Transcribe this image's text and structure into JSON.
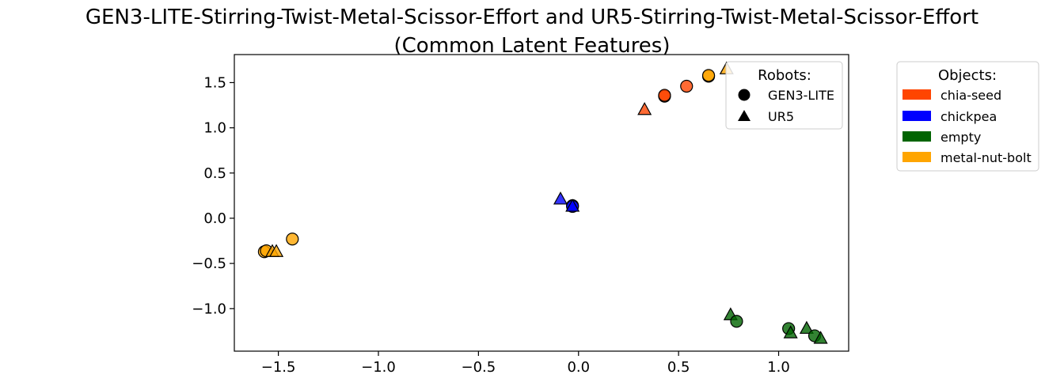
{
  "chart_data": {
    "type": "scatter",
    "title": "GEN3-LITE-Stirring-Twist-Metal-Scissor-Effort and UR5-Stirring-Twist-Metal-Scissor-Effort",
    "subtitle": "(Common Latent Features)",
    "xlabel": "",
    "ylabel": "",
    "xlim": [
      -1.72,
      1.35
    ],
    "ylim": [
      -1.47,
      1.81
    ],
    "grid": false,
    "x_ticks": [
      -1.5,
      -1.0,
      -0.5,
      0.0,
      0.5,
      1.0
    ],
    "x_tick_labels": [
      "−1.5",
      "−1.0",
      "−0.5",
      "0.0",
      "0.5",
      "1.0"
    ],
    "y_ticks": [
      -1.0,
      -0.5,
      0.0,
      0.5,
      1.0,
      1.5
    ],
    "y_tick_labels": [
      "−1.0",
      "−0.5",
      "0.0",
      "0.5",
      "1.0",
      "1.5"
    ],
    "robots_legend": {
      "title": "Robots:",
      "placement": "upper-right inside axes",
      "items": [
        {
          "label": "GEN3-LITE",
          "marker": "circle"
        },
        {
          "label": "UR5",
          "marker": "triangle"
        }
      ]
    },
    "objects_legend": {
      "title": "Objects:",
      "placement": "outside right",
      "items": [
        {
          "label": "chia-seed",
          "color": "#ff4500"
        },
        {
          "label": "chickpea",
          "color": "#0000ff"
        },
        {
          "label": "empty",
          "color": "#006400"
        },
        {
          "label": "metal-nut-bolt",
          "color": "#ffa500"
        }
      ]
    },
    "points": [
      {
        "object": "chia-seed",
        "robot": "GEN3-LITE",
        "x": 0.43,
        "y": 1.35
      },
      {
        "object": "chia-seed",
        "robot": "GEN3-LITE",
        "x": 0.43,
        "y": 1.36
      },
      {
        "object": "chia-seed",
        "robot": "GEN3-LITE",
        "x": 0.54,
        "y": 1.46
      },
      {
        "object": "chia-seed",
        "robot": "UR5",
        "x": 0.33,
        "y": 1.2
      },
      {
        "object": "metal-nut-bolt",
        "robot": "GEN3-LITE",
        "x": 0.65,
        "y": 1.57
      },
      {
        "object": "metal-nut-bolt",
        "robot": "GEN3-LITE",
        "x": 0.65,
        "y": 1.58
      },
      {
        "object": "metal-nut-bolt",
        "robot": "UR5",
        "x": 0.74,
        "y": 1.65
      },
      {
        "object": "metal-nut-bolt",
        "robot": "GEN3-LITE",
        "x": -1.57,
        "y": -0.37
      },
      {
        "object": "metal-nut-bolt",
        "robot": "GEN3-LITE",
        "x": -1.56,
        "y": -0.36
      },
      {
        "object": "metal-nut-bolt",
        "robot": "GEN3-LITE",
        "x": -1.43,
        "y": -0.23
      },
      {
        "object": "metal-nut-bolt",
        "robot": "UR5",
        "x": -1.53,
        "y": -0.37
      },
      {
        "object": "metal-nut-bolt",
        "robot": "UR5",
        "x": -1.51,
        "y": -0.37
      },
      {
        "object": "chickpea",
        "robot": "UR5",
        "x": -0.09,
        "y": 0.21
      },
      {
        "object": "chickpea",
        "robot": "GEN3-LITE",
        "x": -0.03,
        "y": 0.14
      },
      {
        "object": "chickpea",
        "robot": "GEN3-LITE",
        "x": -0.03,
        "y": 0.13
      },
      {
        "object": "chickpea",
        "robot": "UR5",
        "x": -0.03,
        "y": 0.13
      },
      {
        "object": "empty",
        "robot": "UR5",
        "x": 0.76,
        "y": -1.07
      },
      {
        "object": "empty",
        "robot": "GEN3-LITE",
        "x": 0.79,
        "y": -1.14
      },
      {
        "object": "empty",
        "robot": "GEN3-LITE",
        "x": 1.05,
        "y": -1.22
      },
      {
        "object": "empty",
        "robot": "UR5",
        "x": 1.06,
        "y": -1.27
      },
      {
        "object": "empty",
        "robot": "UR5",
        "x": 1.14,
        "y": -1.22
      },
      {
        "object": "empty",
        "robot": "GEN3-LITE",
        "x": 1.18,
        "y": -1.3
      },
      {
        "object": "empty",
        "robot": "UR5",
        "x": 1.21,
        "y": -1.33
      }
    ]
  }
}
